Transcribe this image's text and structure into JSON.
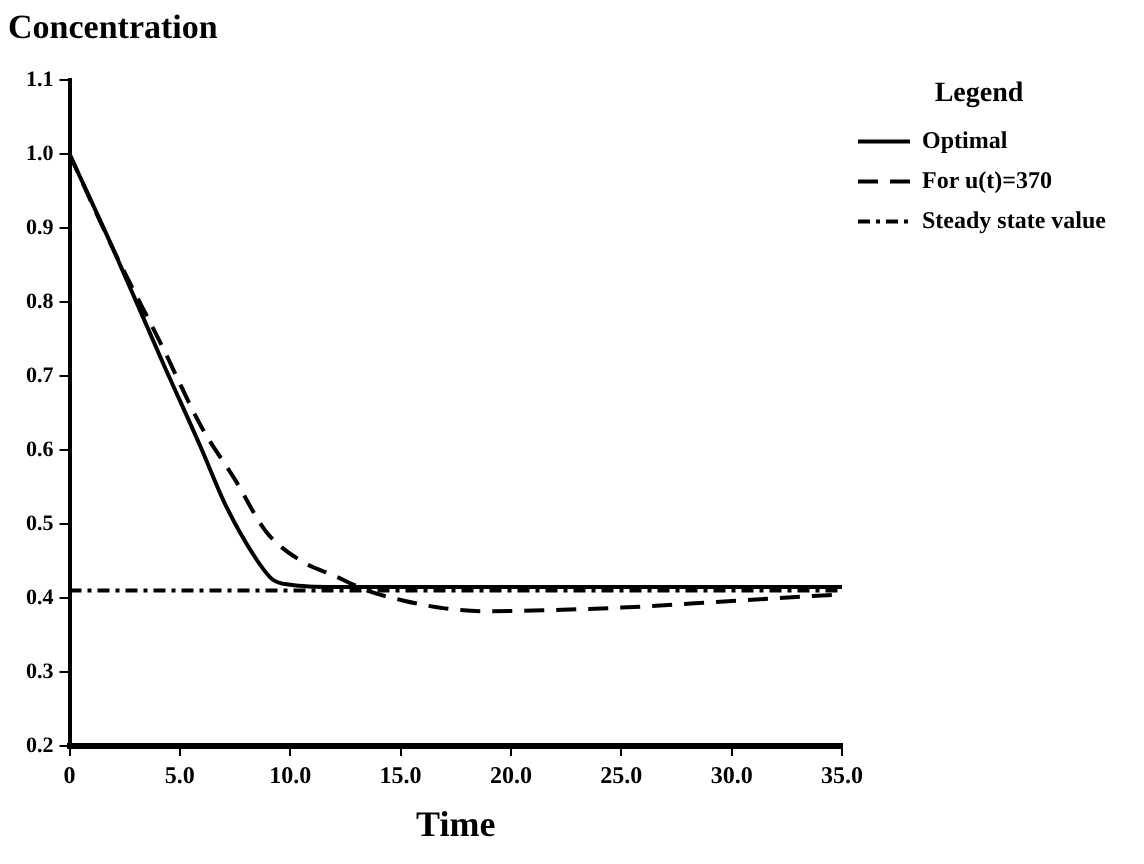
{
  "chart_data": {
    "type": "line",
    "xlabel": "Time",
    "ylabel": "Concentration",
    "legend_title": "Legend",
    "legend": "top right",
    "marker": "none",
    "grid": false,
    "xlim": [
      0,
      35
    ],
    "xticks": [
      0,
      {
        "value": 5,
        "label": "5.0"
      },
      {
        "value": 10,
        "label": "10.0"
      },
      {
        "value": 15,
        "label": "15.0"
      },
      {
        "value": 20,
        "label": "20.0"
      },
      {
        "value": 25,
        "label": "25.0"
      },
      {
        "value": 30,
        "label": "30.0"
      },
      {
        "value": 35,
        "label": "35.0"
      }
    ],
    "ylim": [
      0.2,
      1.1
    ],
    "yticks": [
      0.2,
      0.3,
      0.4,
      0.5,
      0.6,
      0.7,
      0.8,
      0.9,
      {
        "value": 1,
        "label": "1.0"
      },
      1.1
    ],
    "series": [
      {
        "name": "Optimal",
        "color": "#000000",
        "line_style": "solid",
        "x": [
          0,
          2,
          4.2,
          6,
          7,
          8.3,
          9.2,
          10,
          12,
          15,
          20,
          25,
          30,
          35
        ],
        "values": [
          1.0,
          0.87,
          0.72,
          0.6,
          0.53,
          0.46,
          0.425,
          0.418,
          0.415,
          0.415,
          0.415,
          0.415,
          0.415,
          0.415
        ]
      },
      {
        "name": "For u(t)=370",
        "color": "#000000",
        "line_style": "dashed",
        "x": [
          0,
          2,
          4.2,
          6,
          7.5,
          8.9,
          10.5,
          12,
          13.5,
          15.2,
          17,
          18.9,
          21,
          25,
          30,
          35
        ],
        "values": [
          1.0,
          0.87,
          0.74,
          0.63,
          0.56,
          0.49,
          0.45,
          0.43,
          0.41,
          0.396,
          0.386,
          0.382,
          0.383,
          0.387,
          0.396,
          0.405
        ]
      },
      {
        "name": "Steady state value",
        "color": "#000000",
        "line_style": "dotted",
        "x": [
          0,
          35
        ],
        "values": [
          0.41,
          0.41
        ]
      }
    ]
  }
}
